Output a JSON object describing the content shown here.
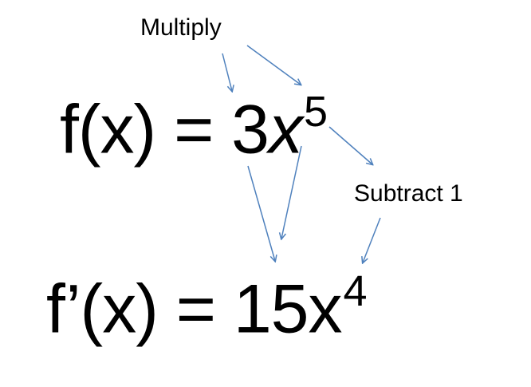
{
  "labels": {
    "multiply": "Multiply",
    "subtract": "Subtract 1"
  },
  "original": {
    "lhs": "f(x) = 3",
    "var": "x",
    "exponent": "5"
  },
  "derivative": {
    "lhs": "f’(x) = 15x",
    "exponent": "4"
  },
  "colors": {
    "arrow": "#4F81BD",
    "text": "#000000",
    "background": "#FFFFFF"
  }
}
